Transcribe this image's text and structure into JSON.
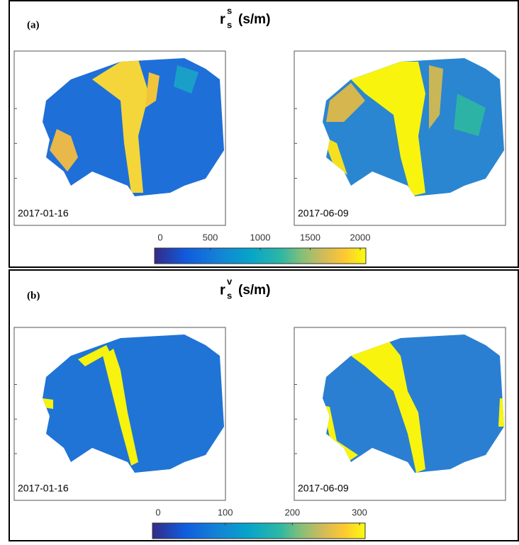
{
  "panels": [
    {
      "label": "(a)",
      "title_main": "r",
      "title_sup": "s",
      "title_sub": "s",
      "title_unit": "(s/m)",
      "maps": [
        {
          "date": "2017-01-16"
        },
        {
          "date": "2017-06-09"
        }
      ],
      "colorbar": {
        "lim": [
          0,
          2000
        ],
        "ticks": [
          0,
          500,
          1000,
          1500,
          2000
        ]
      }
    },
    {
      "label": "(b)",
      "title_main": "r",
      "title_sup": "v",
      "title_sub": "s",
      "title_unit": "(s/m)",
      "maps": [
        {
          "date": "2017-01-16"
        },
        {
          "date": "2017-06-09"
        }
      ],
      "colorbar": {
        "lim": [
          0,
          300
        ],
        "ticks": [
          0,
          100,
          200,
          300
        ]
      }
    }
  ]
}
